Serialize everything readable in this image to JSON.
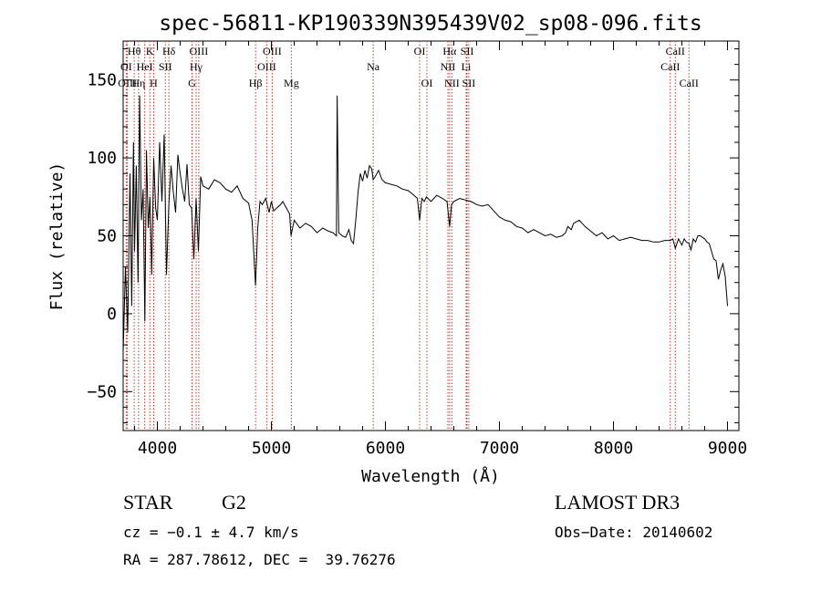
{
  "chart_data": {
    "type": "line",
    "title": "spec-56811-KP190339N395439V02_sp08-096.fits",
    "xlabel": "Wavelength (Å)",
    "ylabel": "Flux (relative)",
    "xlim": [
      3700,
      9100
    ],
    "ylim": [
      -75,
      175
    ],
    "x_ticks": [
      4000,
      5000,
      6000,
      7000,
      8000,
      9000
    ],
    "x_tick_labels": [
      "4000",
      "5000",
      "6000",
      "7000",
      "8000",
      "9000"
    ],
    "y_ticks": [
      -50,
      0,
      50,
      100,
      150
    ],
    "y_tick_labels": [
      "−50",
      "0",
      "50",
      "100",
      "150"
    ],
    "series": [
      {
        "name": "spectrum",
        "color": "#000000",
        "x": [
          3700,
          3720,
          3740,
          3760,
          3775,
          3790,
          3800,
          3815,
          3830,
          3845,
          3860,
          3875,
          3890,
          3905,
          3920,
          3935,
          3950,
          3968,
          3985,
          4000,
          4020,
          4040,
          4060,
          4080,
          4101,
          4120,
          4140,
          4160,
          4180,
          4200,
          4220,
          4240,
          4260,
          4280,
          4300,
          4320,
          4340,
          4360,
          4380,
          4400,
          4450,
          4500,
          4550,
          4600,
          4650,
          4700,
          4750,
          4800,
          4830,
          4861,
          4880,
          4900,
          4920,
          4950,
          4980,
          5000,
          5020,
          5050,
          5080,
          5100,
          5130,
          5160,
          5172,
          5200,
          5250,
          5300,
          5350,
          5400,
          5450,
          5500,
          5540,
          5570,
          5577,
          5590,
          5620,
          5650,
          5680,
          5700,
          5720,
          5740,
          5760,
          5780,
          5800,
          5820,
          5840,
          5860,
          5880,
          5893,
          5910,
          5940,
          5970,
          6000,
          6050,
          6100,
          6150,
          6200,
          6250,
          6280,
          6300,
          6320,
          6340,
          6360,
          6400,
          6450,
          6500,
          6540,
          6563,
          6580,
          6600,
          6650,
          6700,
          6750,
          6800,
          6850,
          6900,
          6950,
          7000,
          7050,
          7100,
          7150,
          7200,
          7250,
          7300,
          7350,
          7400,
          7450,
          7500,
          7550,
          7580,
          7600,
          7630,
          7650,
          7700,
          7750,
          7800,
          7850,
          7900,
          7950,
          8000,
          8050,
          8100,
          8150,
          8200,
          8250,
          8300,
          8350,
          8400,
          8450,
          8498,
          8520,
          8542,
          8570,
          8600,
          8620,
          8640,
          8662,
          8680,
          8700,
          8720,
          8740,
          8760,
          8780,
          8800,
          8820,
          8840,
          8860,
          8880,
          8900,
          8920,
          8940,
          8960,
          8980,
          9000
        ],
        "y": [
          -25,
          30,
          -12,
          90,
          5,
          110,
          40,
          95,
          20,
          140,
          60,
          80,
          -5,
          105,
          55,
          75,
          25,
          100,
          68,
          60,
          110,
          72,
          115,
          25,
          70,
          95,
          78,
          65,
          102,
          90,
          80,
          72,
          96,
          70,
          68,
          35,
          74,
          40,
          88,
          82,
          80,
          86,
          84,
          80,
          78,
          82,
          74,
          71,
          60,
          18,
          55,
          72,
          70,
          74,
          65,
          72,
          66,
          68,
          70,
          72,
          68,
          64,
          50,
          60,
          55,
          58,
          56,
          52,
          55,
          53,
          52,
          50,
          140,
          52,
          50,
          49,
          54,
          47,
          45,
          60,
          78,
          90,
          85,
          92,
          87,
          95,
          93,
          86,
          88,
          92,
          86,
          84,
          83,
          82,
          80,
          79,
          76,
          74,
          60,
          74,
          72,
          75,
          72,
          76,
          74,
          72,
          56,
          70,
          72,
          74,
          73,
          72,
          70,
          69,
          70,
          66,
          62,
          60,
          59,
          56,
          55,
          52,
          54,
          52,
          50,
          51,
          49,
          50,
          52,
          56,
          54,
          58,
          60,
          56,
          53,
          50,
          52,
          48,
          50,
          47,
          48,
          49,
          48,
          47,
          47,
          46,
          46,
          47,
          47,
          48,
          42,
          48,
          44,
          48,
          46,
          45,
          41,
          48,
          46,
          50,
          50,
          49,
          48,
          46,
          45,
          40,
          35,
          34,
          22,
          28,
          32,
          24,
          5
        ]
      }
    ],
    "line_annotations": [
      {
        "label": "OI",
        "wavelength": 3727,
        "row": 1
      },
      {
        "label": "OIII",
        "wavelength": 3737,
        "row": 2
      },
      {
        "label": "Hθ",
        "wavelength": 3797,
        "row": 0
      },
      {
        "label": "Hη",
        "wavelength": 3835,
        "row": 2
      },
      {
        "label": "HeI",
        "wavelength": 3889,
        "row": 1
      },
      {
        "label": "K",
        "wavelength": 3934,
        "row": 0
      },
      {
        "label": "H",
        "wavelength": 3968,
        "row": 2
      },
      {
        "label": "SII",
        "wavelength": 4070,
        "row": 1
      },
      {
        "label": "Hδ",
        "wavelength": 4101,
        "row": 0
      },
      {
        "label": "OIII",
        "wavelength": 4363,
        "row": 0
      },
      {
        "label": "Hγ",
        "wavelength": 4340,
        "row": 1
      },
      {
        "label": "G",
        "wavelength": 4304,
        "row": 2
      },
      {
        "label": "Hβ",
        "wavelength": 4861,
        "row": 2
      },
      {
        "label": "OIII",
        "wavelength": 5007,
        "row": 0
      },
      {
        "label": "OIII",
        "wavelength": 4959,
        "row": 1
      },
      {
        "label": "Mg",
        "wavelength": 5175,
        "row": 2
      },
      {
        "label": "Na",
        "wavelength": 5893,
        "row": 1
      },
      {
        "label": "OI",
        "wavelength": 6300,
        "row": 0
      },
      {
        "label": "OI",
        "wavelength": 6364,
        "row": 2
      },
      {
        "label": "Hα",
        "wavelength": 6563,
        "row": 0
      },
      {
        "label": "NII",
        "wavelength": 6548,
        "row": 1
      },
      {
        "label": "NII",
        "wavelength": 6583,
        "row": 2
      },
      {
        "label": "SII",
        "wavelength": 6716,
        "row": 0
      },
      {
        "label": "Li",
        "wavelength": 6708,
        "row": 1
      },
      {
        "label": "SII",
        "wavelength": 6731,
        "row": 2
      },
      {
        "label": "CaII",
        "wavelength": 8542,
        "row": 0
      },
      {
        "label": "CaII",
        "wavelength": 8498,
        "row": 1
      },
      {
        "label": "CaII",
        "wavelength": 8662,
        "row": 2
      }
    ],
    "annotation_line_color": "#c0392b",
    "axis_color": "#000000"
  },
  "info": {
    "object_type": "STAR",
    "subclass": "G2",
    "survey": "LAMOST DR3",
    "redshift_text": "cz = −0.1 ± 4.7 km/s",
    "obs_date": "Obs−Date: 20140602",
    "coords": "RA = 287.78612, DEC =  39.76276"
  }
}
